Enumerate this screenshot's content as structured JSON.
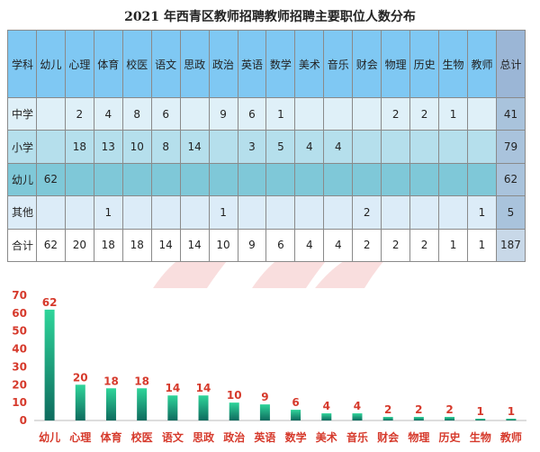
{
  "title": "2021 年西青区教师招聘教师招聘主要职位人数分布",
  "table": {
    "header": [
      "学科",
      "幼儿",
      "心理",
      "体育",
      "校医",
      "语文",
      "思政",
      "政治",
      "英语",
      "数学",
      "美术",
      "音乐",
      "财会",
      "物理",
      "历史",
      "生物",
      "教师",
      "总计"
    ],
    "rows": [
      {
        "label": "中学",
        "cells": [
          "",
          "2",
          "4",
          "8",
          "6",
          "",
          "9",
          "6",
          "1",
          "",
          "",
          "",
          "2",
          "2",
          "1",
          "",
          "41"
        ]
      },
      {
        "label": "小学",
        "cells": [
          "",
          "18",
          "13",
          "10",
          "8",
          "14",
          "",
          "3",
          "5",
          "4",
          "4",
          "",
          "",
          "",
          "",
          "",
          "79"
        ]
      },
      {
        "label": "幼儿",
        "cells": [
          "62",
          "",
          "",
          "",
          "",
          "",
          "",
          "",
          "",
          "",
          "",
          "",
          "",
          "",
          "",
          "",
          "62"
        ]
      },
      {
        "label": "其他",
        "cells": [
          "",
          "",
          "1",
          "",
          "",
          "",
          "1",
          "",
          "",
          "",
          "",
          "2",
          "",
          "",
          "",
          "1",
          "5"
        ]
      },
      {
        "label": "合计",
        "cells": [
          "62",
          "20",
          "18",
          "18",
          "14",
          "14",
          "10",
          "9",
          "6",
          "4",
          "4",
          "2",
          "2",
          "2",
          "1",
          "1",
          "187"
        ]
      }
    ]
  },
  "chart_data": {
    "type": "bar",
    "categories": [
      "幼儿",
      "心理",
      "体育",
      "校医",
      "语文",
      "思政",
      "政治",
      "英语",
      "数学",
      "美术",
      "音乐",
      "财会",
      "物理",
      "历史",
      "生物",
      "教师"
    ],
    "values": [
      62,
      20,
      18,
      18,
      14,
      14,
      10,
      9,
      6,
      4,
      4,
      2,
      2,
      2,
      1,
      1
    ],
    "yticks": [
      0,
      10,
      20,
      30,
      40,
      50,
      60,
      70
    ],
    "ylim": [
      0,
      70
    ],
    "grid": false,
    "legend": "none",
    "colors": {
      "bar_top": "#2fd59a",
      "bar_bottom": "#0e6b5e",
      "label": "#d63a2c",
      "axis": "#333333"
    }
  }
}
